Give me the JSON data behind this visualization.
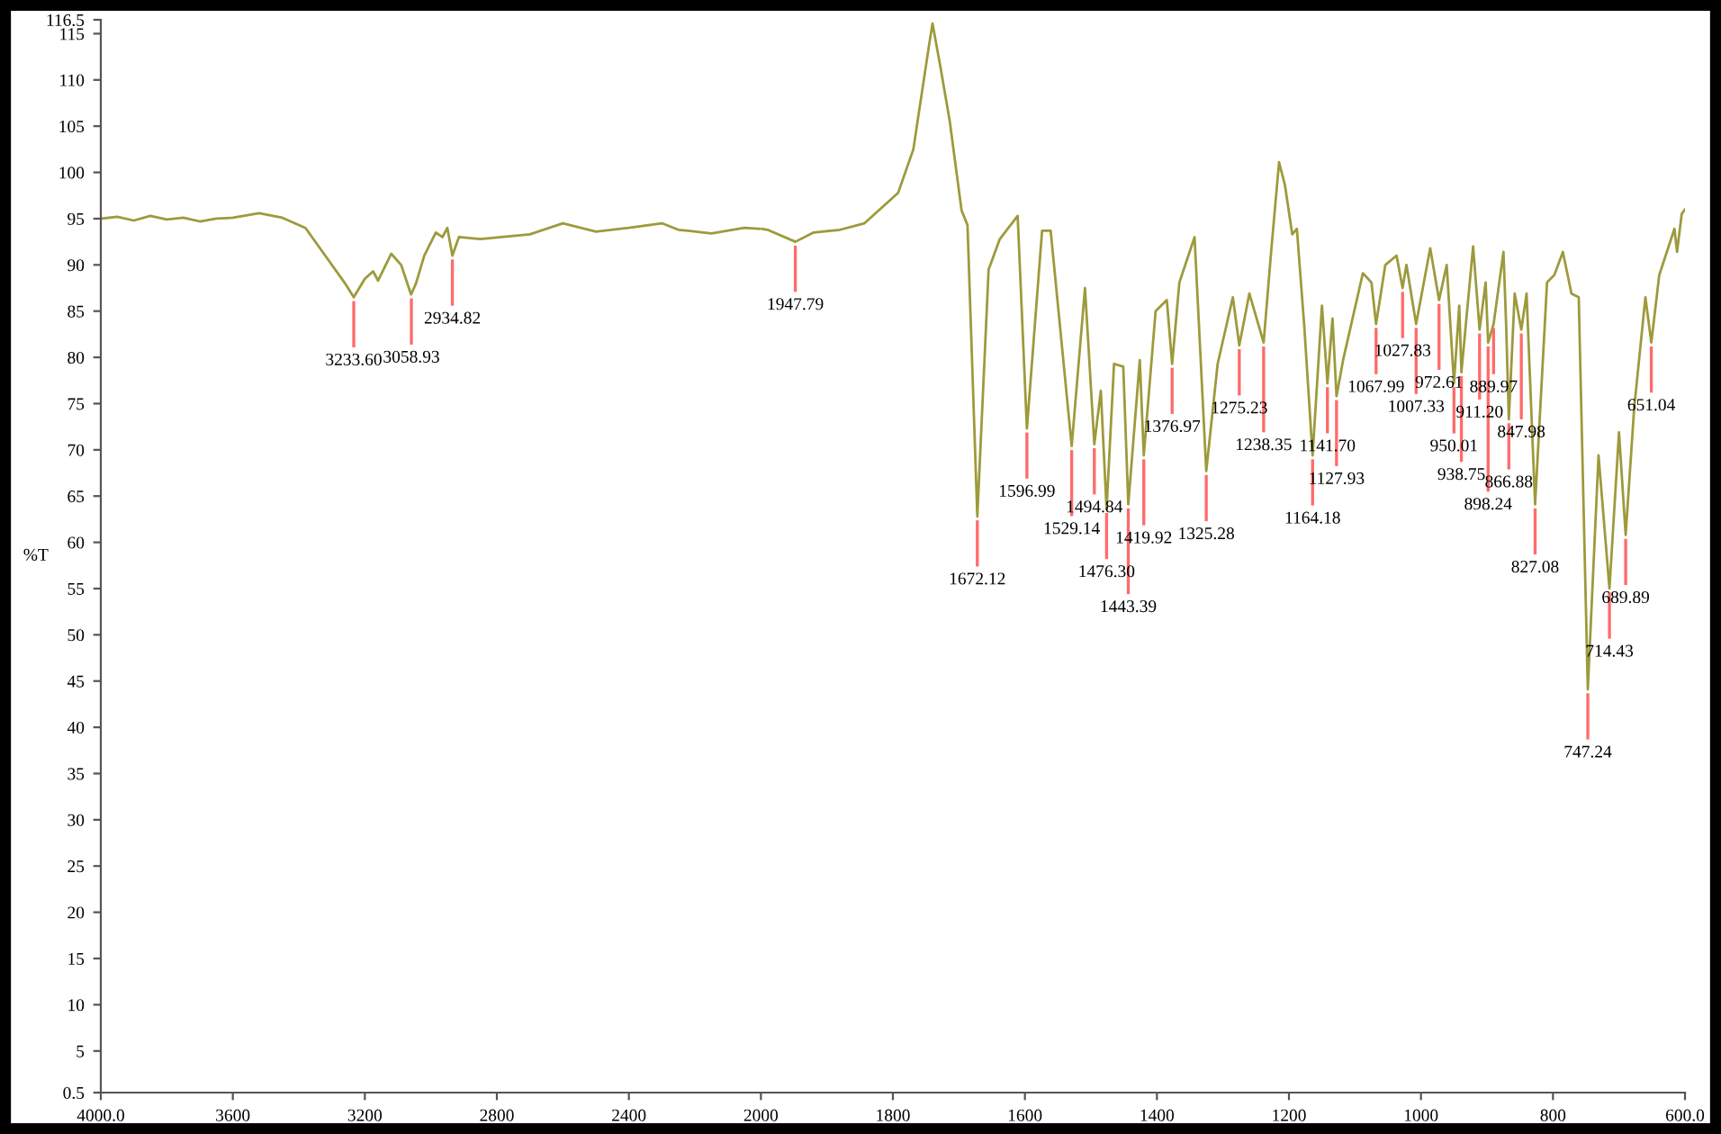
{
  "chart_data": [
    {
      "type": "line",
      "ylabel": "%T",
      "xlim": [
        4000,
        2000
      ],
      "xticks": [
        {
          "value": 4000,
          "label": "4000.0"
        },
        3600,
        3200,
        2800,
        2400,
        2000
      ],
      "ylim": [
        0.5,
        116.5
      ],
      "yticks": [
        0.5,
        5,
        10,
        15,
        20,
        25,
        30,
        35,
        40,
        45,
        50,
        55,
        60,
        65,
        70,
        75,
        80,
        85,
        90,
        95,
        100,
        105,
        110,
        115,
        116.5
      ],
      "line_style": "solid",
      "series": [
        {
          "color": "#9d9a3c",
          "x": [
            4000,
            3950,
            3900,
            3850,
            3800,
            3750,
            3700,
            3650,
            3600,
            3520,
            3450,
            3380,
            3320,
            3260,
            3233.6,
            3200,
            3175,
            3160,
            3120,
            3090,
            3060,
            3045,
            3020,
            2985,
            2965,
            2950,
            2934.82,
            2915,
            2850,
            2700,
            2600,
            2500,
            2400,
            2300,
            2250,
            2150,
            2050,
            2000
          ],
          "values": [
            95,
            95.2,
            94.8,
            95.3,
            94.9,
            95.1,
            94.7,
            95,
            95.1,
            95.6,
            95.1,
            94,
            91,
            88,
            86.5,
            88.5,
            89.3,
            88.3,
            91.2,
            90,
            86.8,
            88,
            91,
            93.5,
            93,
            94,
            91,
            93,
            92.8,
            93.3,
            94.5,
            93.6,
            94,
            94.5,
            93.8,
            93.4,
            94,
            93.9
          ]
        }
      ],
      "annotations": [
        {
          "text": "3233.60",
          "x": 3233.6,
          "y": 86.5
        },
        {
          "text": "3058.93",
          "x": 3058.93,
          "y": 86.8
        },
        {
          "text": "2934.82",
          "x": 2934.82,
          "y": 91
        }
      ]
    },
    {
      "type": "line",
      "xlim": [
        2000,
        600
      ],
      "xticks": [
        1800,
        1600,
        1400,
        1200,
        1000,
        800,
        {
          "value": 600,
          "label": "600.0"
        }
      ],
      "ylim": [
        0.5,
        116.5
      ],
      "tick_labels": "x",
      "line_style": "solid",
      "series": [
        {
          "color": "#9d9a3c",
          "x": [
            2000,
            1990,
            1947.79,
            1920,
            1880,
            1843,
            1792,
            1769,
            1746,
            1740,
            1728,
            1714,
            1696,
            1687,
            1672.12,
            1655,
            1638,
            1611,
            1596.99,
            1574,
            1561,
            1529.14,
            1509,
            1494.84,
            1485,
            1476.3,
            1465,
            1451,
            1443.39,
            1426,
            1419.92,
            1402,
            1385,
            1376.97,
            1366,
            1343,
            1325.28,
            1308,
            1285,
            1275.23,
            1260,
            1238.35,
            1227,
            1215,
            1206,
            1195,
            1188,
            1177,
            1164.18,
            1150,
            1141.7,
            1134,
            1127.93,
            1118,
            1088,
            1075,
            1067.99,
            1054,
            1037,
            1027.83,
            1022,
            1007.33,
            986,
            972.61,
            961,
            950.01,
            942,
            938.75,
            921,
            911.2,
            902,
            898.24,
            889.97,
            875,
            871,
            866.88,
            858,
            847.98,
            840,
            827.08,
            809,
            798,
            785,
            772,
            761,
            747.24,
            731,
            714.43,
            700,
            689.89,
            677,
            660,
            651.04,
            639,
            616,
            612,
            605,
            600
          ],
          "values": [
            93.9,
            93.8,
            92.5,
            93.5,
            93.8,
            94.5,
            97.8,
            102.5,
            113.4,
            116.1,
            111.4,
            105.6,
            95.9,
            94.3,
            62.8,
            89.5,
            92.8,
            95.3,
            72.3,
            93.7,
            93.7,
            70.4,
            87.5,
            70.6,
            76.4,
            63.6,
            79.3,
            79,
            64.1,
            79.7,
            69.4,
            85,
            86.2,
            79.3,
            88.1,
            93,
            67.7,
            79.3,
            86.5,
            81.3,
            86.9,
            81.6,
            91.4,
            101.1,
            98.6,
            93.3,
            93.9,
            83.6,
            69.4,
            85.6,
            77.2,
            84.2,
            75.8,
            79.7,
            89.1,
            88.1,
            83.6,
            90,
            91,
            87.5,
            90,
            83.6,
            91.8,
            86.2,
            90,
            77.2,
            85.6,
            78.4,
            92,
            83,
            88.1,
            81.6,
            83.6,
            91.4,
            83.6,
            73.3,
            86.9,
            83,
            86.9,
            64.1,
            88.1,
            88.9,
            91.4,
            86.9,
            86.5,
            44.1,
            69.4,
            55,
            71.9,
            60.8,
            74.5,
            86.5,
            81.6,
            88.9,
            93.9,
            91.4,
            95.5,
            96
          ]
        }
      ],
      "annotations": [
        {
          "text": "1947.79",
          "x": 1947.79,
          "y": 92.5
        },
        {
          "text": "1672.12",
          "x": 1672.12,
          "y": 62.8
        },
        {
          "text": "1596.99",
          "x": 1596.99,
          "y": 72.3
        },
        {
          "text": "1529.14",
          "x": 1529.14,
          "y": 70.4
        },
        {
          "text": "1494.84",
          "x": 1494.84,
          "y": 70.6
        },
        {
          "text": "1476.30",
          "x": 1476.3,
          "y": 63.6
        },
        {
          "text": "1443.39",
          "x": 1443.39,
          "y": 64.1
        },
        {
          "text": "1419.92",
          "x": 1419.92,
          "y": 69.4
        },
        {
          "text": "1376.97",
          "x": 1376.97,
          "y": 79.3
        },
        {
          "text": "1325.28",
          "x": 1325.28,
          "y": 67.7
        },
        {
          "text": "1275.23",
          "x": 1275.23,
          "y": 81.3
        },
        {
          "text": "1238.35",
          "x": 1238.35,
          "y": 81.6
        },
        {
          "text": "1164.18",
          "x": 1164.18,
          "y": 69.4
        },
        {
          "text": "1141.70",
          "x": 1141.7,
          "y": 77.2
        },
        {
          "text": "1127.93",
          "x": 1127.93,
          "y": 75.8
        },
        {
          "text": "1067.99",
          "x": 1067.99,
          "y": 83.6
        },
        {
          "text": "1027.83",
          "x": 1027.83,
          "y": 87.5
        },
        {
          "text": "1007.33",
          "x": 1007.33,
          "y": 83.6
        },
        {
          "text": "972.61",
          "x": 972.61,
          "y": 86.2
        },
        {
          "text": "950.01",
          "x": 950.01,
          "y": 77.2
        },
        {
          "text": "938.75",
          "x": 938.75,
          "y": 78.4
        },
        {
          "text": "911.20",
          "x": 911.2,
          "y": 83
        },
        {
          "text": "898.24",
          "x": 898.24,
          "y": 81.6
        },
        {
          "text": "889.97",
          "x": 889.97,
          "y": 83.6
        },
        {
          "text": "866.88",
          "x": 866.88,
          "y": 73.3
        },
        {
          "text": "847.98",
          "x": 847.98,
          "y": 83
        },
        {
          "text": "827.08",
          "x": 827.08,
          "y": 64.1
        },
        {
          "text": "747.24",
          "x": 747.24,
          "y": 44.1
        },
        {
          "text": "714.43",
          "x": 714.43,
          "y": 55
        },
        {
          "text": "689.89",
          "x": 689.89,
          "y": 60.8
        },
        {
          "text": "651.04",
          "x": 651.04,
          "y": 81.6
        }
      ]
    }
  ]
}
